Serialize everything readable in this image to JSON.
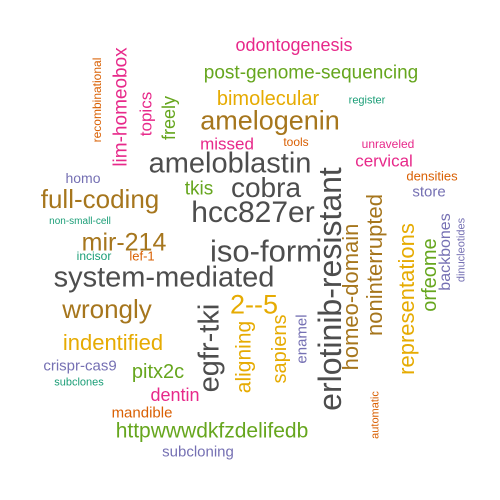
{
  "colors": {
    "gray": "#4d4d4d",
    "brown": "#a6761d",
    "green": "#66a61e",
    "magenta": "#e7298a",
    "orange": "#d95f02",
    "gold": "#e6ab02",
    "purple": "#7570b3",
    "teal": "#1b9e77"
  },
  "words": [
    {
      "text": "odontogenesis",
      "color": "magenta",
      "orientation": "horizontal"
    },
    {
      "text": "post-genome-sequencing",
      "color": "green",
      "orientation": "horizontal"
    },
    {
      "text": "recombinational",
      "color": "orange",
      "orientation": "vertical"
    },
    {
      "text": "lim-homeobox",
      "color": "magenta",
      "orientation": "vertical"
    },
    {
      "text": "topics",
      "color": "magenta",
      "orientation": "vertical"
    },
    {
      "text": "freely",
      "color": "green",
      "orientation": "vertical"
    },
    {
      "text": "bimolecular",
      "color": "gold",
      "orientation": "horizontal"
    },
    {
      "text": "register",
      "color": "teal",
      "orientation": "horizontal"
    },
    {
      "text": "amelogenin",
      "color": "brown",
      "orientation": "horizontal"
    },
    {
      "text": "missed",
      "color": "magenta",
      "orientation": "horizontal"
    },
    {
      "text": "tools",
      "color": "orange",
      "orientation": "horizontal"
    },
    {
      "text": "unraveled",
      "color": "magenta",
      "orientation": "horizontal"
    },
    {
      "text": "cervical",
      "color": "magenta",
      "orientation": "horizontal"
    },
    {
      "text": "ameloblastin",
      "color": "gray",
      "orientation": "horizontal"
    },
    {
      "text": "densities",
      "color": "orange",
      "orientation": "horizontal"
    },
    {
      "text": "homo",
      "color": "purple",
      "orientation": "horizontal"
    },
    {
      "text": "tkis",
      "color": "green",
      "orientation": "horizontal"
    },
    {
      "text": "cobra",
      "color": "gray",
      "orientation": "horizontal"
    },
    {
      "text": "store",
      "color": "purple",
      "orientation": "horizontal"
    },
    {
      "text": "full-coding",
      "color": "brown",
      "orientation": "horizontal"
    },
    {
      "text": "hcc827er",
      "color": "gray",
      "orientation": "horizontal"
    },
    {
      "text": "non-small-cell",
      "color": "teal",
      "orientation": "horizontal"
    },
    {
      "text": "erlotinib-resistant",
      "color": "gray",
      "orientation": "vertical"
    },
    {
      "text": "homeo-domain",
      "color": "brown",
      "orientation": "vertical"
    },
    {
      "text": "noninterrupted",
      "color": "brown",
      "orientation": "vertical"
    },
    {
      "text": "backbones",
      "color": "purple",
      "orientation": "vertical"
    },
    {
      "text": "dinucleotides",
      "color": "purple",
      "orientation": "vertical"
    },
    {
      "text": "mir-214",
      "color": "brown",
      "orientation": "horizontal"
    },
    {
      "text": "iso-form",
      "color": "gray",
      "orientation": "horizontal"
    },
    {
      "text": "incisor",
      "color": "teal",
      "orientation": "horizontal"
    },
    {
      "text": "lef-1",
      "color": "orange",
      "orientation": "horizontal"
    },
    {
      "text": "system-mediated",
      "color": "gray",
      "orientation": "horizontal"
    },
    {
      "text": "orfeome",
      "color": "green",
      "orientation": "vertical"
    },
    {
      "text": "representations",
      "color": "gold",
      "orientation": "vertical"
    },
    {
      "text": "wrongly",
      "color": "brown",
      "orientation": "horizontal"
    },
    {
      "text": "2--5",
      "color": "gold",
      "orientation": "horizontal"
    },
    {
      "text": "egfr-tki",
      "color": "gray",
      "orientation": "vertical"
    },
    {
      "text": "indentified",
      "color": "gold",
      "orientation": "horizontal"
    },
    {
      "text": "aligning",
      "color": "gold",
      "orientation": "vertical"
    },
    {
      "text": "sapiens",
      "color": "gold",
      "orientation": "vertical"
    },
    {
      "text": "enamel",
      "color": "purple",
      "orientation": "vertical"
    },
    {
      "text": "crispr-cas9",
      "color": "purple",
      "orientation": "horizontal"
    },
    {
      "text": "pitx2c",
      "color": "green",
      "orientation": "horizontal"
    },
    {
      "text": "subclones",
      "color": "teal",
      "orientation": "horizontal"
    },
    {
      "text": "dentin",
      "color": "magenta",
      "orientation": "horizontal"
    },
    {
      "text": "automatic",
      "color": "orange",
      "orientation": "vertical"
    },
    {
      "text": "mandible",
      "color": "orange",
      "orientation": "horizontal"
    },
    {
      "text": "httpwwwdkfzdelifedb",
      "color": "green",
      "orientation": "horizontal"
    },
    {
      "text": "subcloning",
      "color": "purple",
      "orientation": "horizontal"
    }
  ]
}
